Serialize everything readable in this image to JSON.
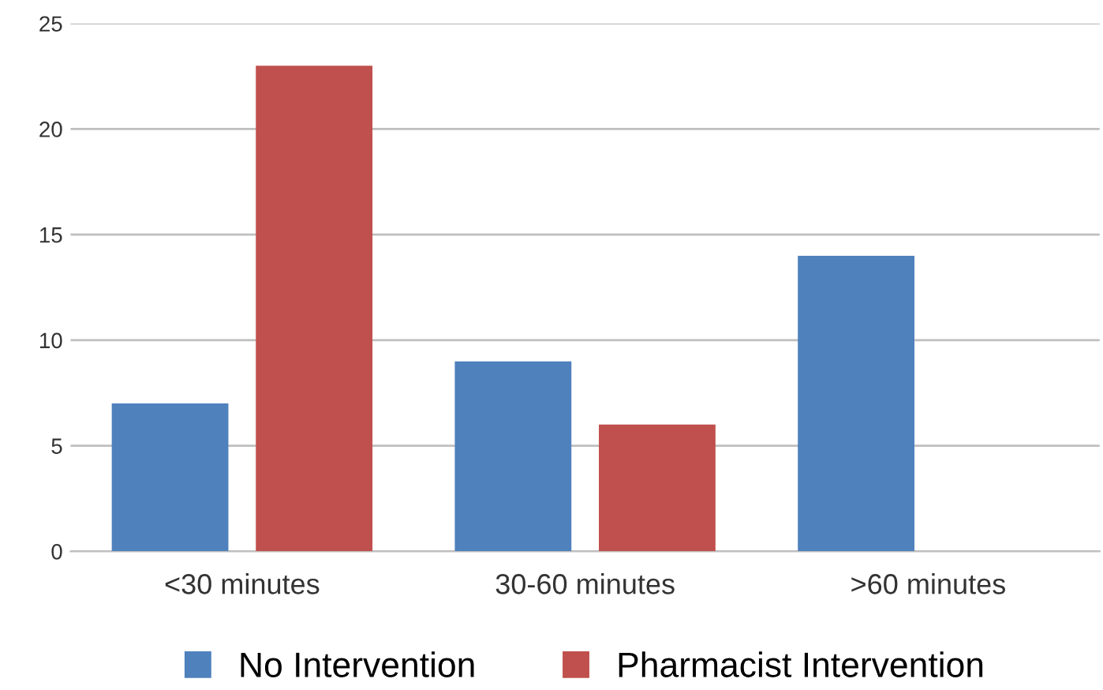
{
  "chart_data": {
    "type": "bar",
    "categories": [
      "<30 minutes",
      "30-60 minutes",
      ">60 minutes"
    ],
    "series": [
      {
        "name": "No Intervention",
        "color": "#4f81bd",
        "values": [
          7,
          9,
          14
        ]
      },
      {
        "name": "Pharmacist Intervention",
        "color": "#c0504d",
        "values": [
          23,
          6,
          0
        ]
      }
    ],
    "ylim": [
      0,
      25
    ],
    "yticks": [
      0,
      5,
      10,
      15,
      20,
      25
    ],
    "grid": "y",
    "legend": "bottom"
  }
}
